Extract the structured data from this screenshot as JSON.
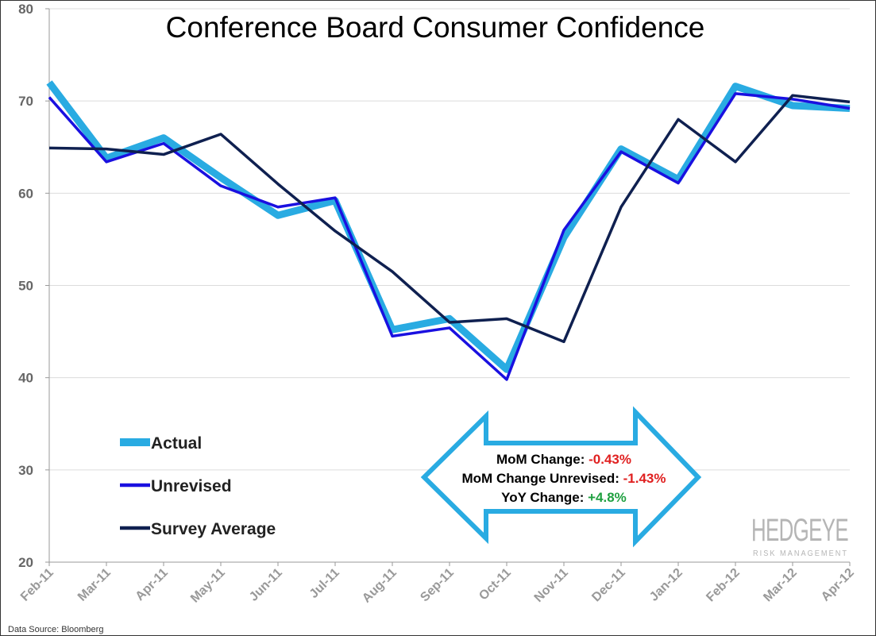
{
  "chart_data": {
    "type": "line",
    "title": "Conference Board Consumer Confidence",
    "categories": [
      "Feb-11",
      "Mar-11",
      "Apr-11",
      "May-11",
      "Jun-11",
      "Jul-11",
      "Aug-11",
      "Sep-11",
      "Oct-11",
      "Nov-11",
      "Dec-11",
      "Jan-12",
      "Feb-12",
      "Mar-12",
      "Apr-12"
    ],
    "ylim": [
      20,
      80
    ],
    "yticks": [
      "20",
      "30",
      "40",
      "50",
      "60",
      "70",
      "80"
    ],
    "grid": true,
    "legend_position": "bottom-left",
    "series": [
      {
        "name": "Actual",
        "color": "#29ABE2",
        "values": [
          72.0,
          63.8,
          66.0,
          61.7,
          57.6,
          59.2,
          45.2,
          46.4,
          40.9,
          55.2,
          64.8,
          61.5,
          71.6,
          69.5,
          69.2
        ]
      },
      {
        "name": "Unrevised",
        "color": "#1A10E0",
        "values": [
          70.4,
          63.4,
          65.4,
          60.8,
          58.5,
          59.5,
          44.5,
          45.4,
          39.8,
          56.0,
          64.5,
          61.1,
          70.8,
          70.2,
          69.2
        ]
      },
      {
        "name": "Survey Average",
        "color": "#0F2050",
        "values": [
          64.9,
          64.8,
          64.2,
          66.4,
          61.0,
          55.9,
          51.5,
          46.0,
          46.4,
          43.9,
          58.5,
          68.0,
          63.4,
          70.6,
          69.9
        ]
      }
    ],
    "annotation": {
      "lines": [
        {
          "label": "MoM Change:",
          "value": "-0.43%",
          "color": "#E02020"
        },
        {
          "label": "MoM Change Unrevised:",
          "value": "-1.43%",
          "color": "#E02020"
        },
        {
          "label": "YoY Change:",
          "value": "+4.8%",
          "color": "#1FA040"
        }
      ]
    }
  },
  "logo": {
    "main": "HEDGEYE",
    "sub": "RISK MANAGEMENT"
  },
  "source": "Data Source: Bloomberg"
}
